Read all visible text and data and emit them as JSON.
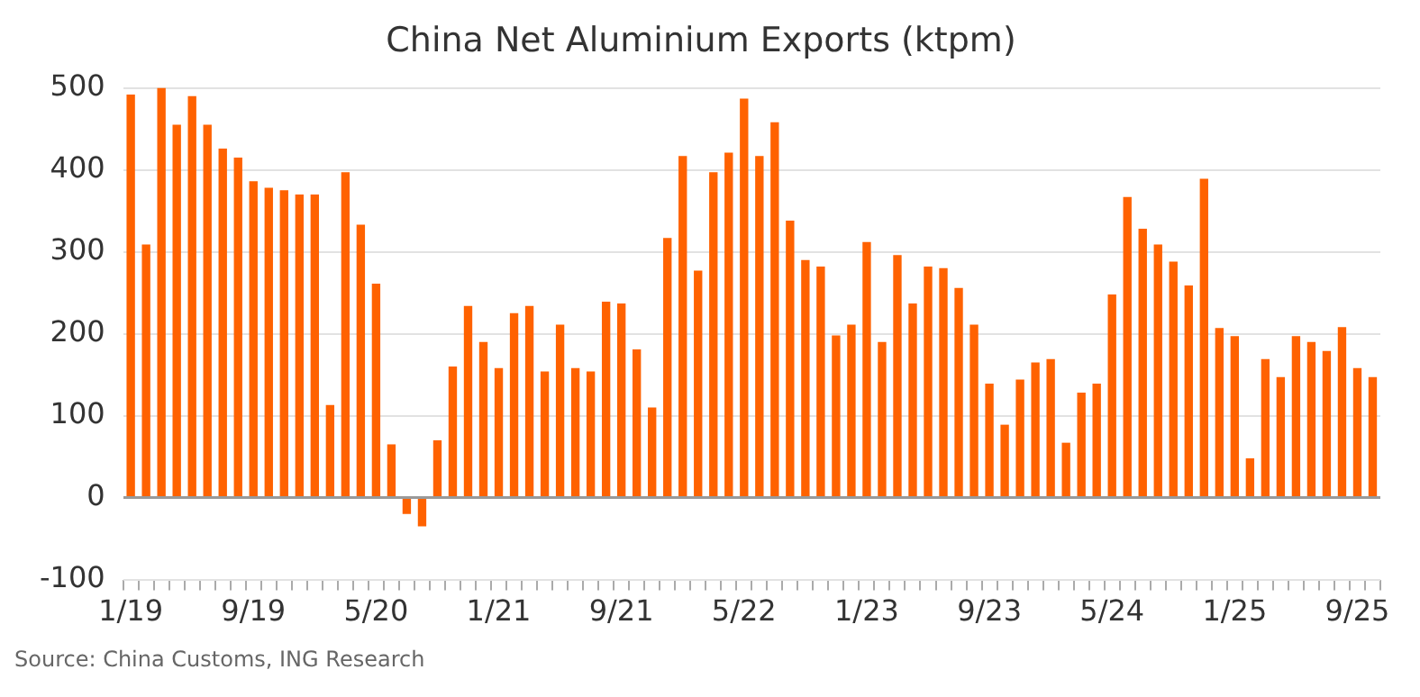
{
  "chart_data": {
    "type": "bar",
    "title": "China Net Aluminium Exports (ktpm)",
    "categories": [
      "1/19",
      null,
      null,
      null,
      null,
      null,
      null,
      null,
      "9/19",
      null,
      null,
      null,
      null,
      null,
      null,
      null,
      "5/20",
      null,
      null,
      null,
      null,
      null,
      null,
      null,
      "1/21",
      null,
      null,
      null,
      null,
      null,
      null,
      null,
      "9/21",
      null,
      null,
      null,
      null,
      null,
      null,
      null,
      "5/22",
      null,
      null,
      null,
      null,
      null,
      null,
      null,
      "1/23",
      null,
      null,
      null,
      null,
      null,
      null,
      null,
      "9/23",
      null,
      null,
      null,
      null,
      null,
      null,
      null,
      "5/24",
      null,
      null,
      null,
      null,
      null,
      null,
      null,
      "1/25",
      null,
      null,
      null,
      null,
      null,
      null,
      null,
      "9/25",
      null
    ],
    "values": [
      492,
      309,
      500,
      455,
      490,
      455,
      426,
      415,
      386,
      378,
      375,
      370,
      370,
      113,
      397,
      333,
      261,
      65,
      -20,
      -35,
      70,
      160,
      234,
      190,
      158,
      225,
      234,
      154,
      211,
      158,
      154,
      239,
      237,
      181,
      110,
      317,
      417,
      277,
      397,
      421,
      487,
      417,
      458,
      338,
      290,
      282,
      198,
      211,
      312,
      190,
      296,
      237,
      282,
      280,
      256,
      211,
      139,
      89,
      144,
      165,
      169,
      67,
      128,
      139,
      248,
      367,
      328,
      309,
      288,
      259,
      389,
      207,
      197,
      48,
      169,
      147,
      197,
      190,
      179,
      208,
      158,
      147
    ],
    "color": "#ff6200",
    "ylim": [
      -100,
      500
    ],
    "yticks": [
      -100,
      0,
      100,
      200,
      300,
      400,
      500
    ],
    "grid": "y",
    "legend": false,
    "annotations": [
      "Source: China Customs, ING Research"
    ]
  }
}
